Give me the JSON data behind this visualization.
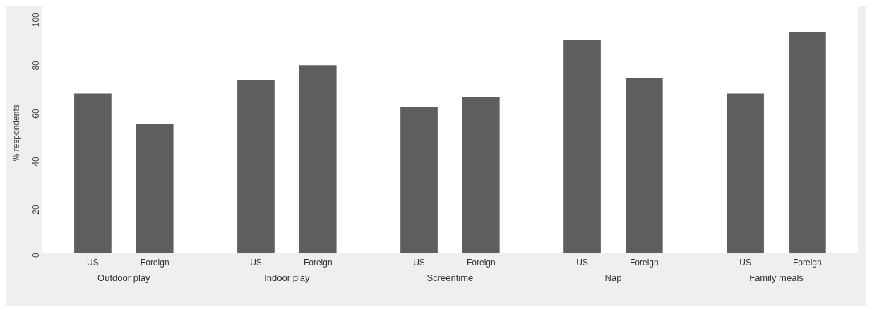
{
  "chart_data": {
    "type": "bar",
    "ylabel": "% respondents",
    "categories": [
      "Outdoor play",
      "Indoor play",
      "Screentime",
      "Nap",
      "Family meals"
    ],
    "series": [
      {
        "name": "US",
        "color": "#5e5e5e",
        "values": [
          66.4,
          72.0,
          61.0,
          88.8,
          66.4
        ]
      },
      {
        "name": "Foreign",
        "color": "#5e5e5e",
        "values": [
          53.6,
          78.2,
          64.9,
          72.9,
          91.9
        ]
      }
    ],
    "ylim": [
      0,
      100
    ],
    "yticks": [
      0,
      20,
      40,
      60,
      80,
      100
    ],
    "grid": "y",
    "legend": false
  }
}
